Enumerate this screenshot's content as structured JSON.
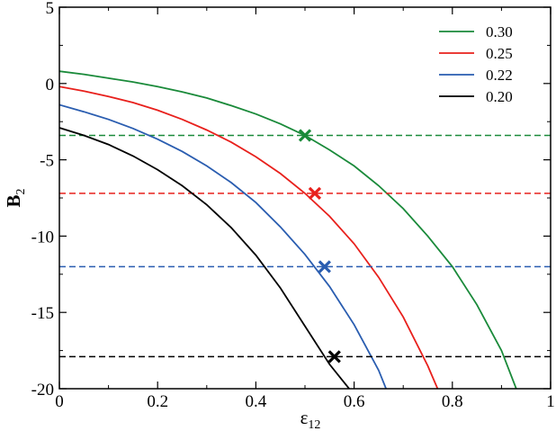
{
  "chart_data": {
    "type": "line",
    "title": "",
    "xlabel": "ε",
    "xlabel_sub": "12",
    "ylabel": "B",
    "ylabel_sub": "2",
    "xlim": [
      0,
      1
    ],
    "ylim": [
      -20,
      5
    ],
    "xticks": [
      0,
      0.2,
      0.4,
      0.6,
      0.8,
      1
    ],
    "xtick_labels": [
      "0",
      "0.2",
      "0.4",
      "0.6",
      "0.8",
      "1"
    ],
    "yticks": [
      5,
      0,
      -5,
      -10,
      -15,
      -20
    ],
    "ytick_labels": [
      "5",
      "0",
      "-5",
      "-10",
      "-15",
      "-20"
    ],
    "grid": false,
    "legend_position": "top-right",
    "series": [
      {
        "name": "0.30",
        "color": "#1a8a3a",
        "x": [
          0,
          0.05,
          0.1,
          0.15,
          0.2,
          0.25,
          0.3,
          0.35,
          0.4,
          0.45,
          0.5,
          0.55,
          0.6,
          0.65,
          0.7,
          0.75,
          0.8,
          0.85,
          0.9,
          0.93
        ],
        "y": [
          0.8,
          0.6,
          0.35,
          0.1,
          -0.2,
          -0.55,
          -0.95,
          -1.45,
          -2.0,
          -2.65,
          -3.4,
          -4.35,
          -5.4,
          -6.7,
          -8.2,
          -10.0,
          -12.0,
          -14.5,
          -17.5,
          -20.0
        ],
        "marker": {
          "x": 0.5,
          "y": -3.4
        },
        "hline_y": -3.4
      },
      {
        "name": "0.25",
        "color": "#e8201c",
        "x": [
          0,
          0.05,
          0.1,
          0.15,
          0.2,
          0.25,
          0.3,
          0.35,
          0.4,
          0.45,
          0.5,
          0.55,
          0.6,
          0.65,
          0.7,
          0.75,
          0.77
        ],
        "y": [
          -0.2,
          -0.5,
          -0.85,
          -1.25,
          -1.75,
          -2.35,
          -3.05,
          -3.85,
          -4.8,
          -5.9,
          -7.2,
          -8.7,
          -10.5,
          -12.7,
          -15.3,
          -18.5,
          -20.0
        ],
        "marker": {
          "x": 0.52,
          "y": -7.2
        },
        "hline_y": -7.2
      },
      {
        "name": "0.22",
        "color": "#2a5db0",
        "x": [
          0,
          0.05,
          0.1,
          0.15,
          0.2,
          0.25,
          0.3,
          0.35,
          0.4,
          0.45,
          0.5,
          0.55,
          0.6,
          0.65,
          0.665
        ],
        "y": [
          -1.4,
          -1.85,
          -2.35,
          -2.95,
          -3.65,
          -4.45,
          -5.4,
          -6.5,
          -7.8,
          -9.4,
          -11.2,
          -13.3,
          -15.8,
          -18.8,
          -20.0
        ],
        "marker": {
          "x": 0.54,
          "y": -12.0
        },
        "hline_y": -12.0
      },
      {
        "name": "0.20",
        "color": "#000000",
        "x": [
          0,
          0.05,
          0.1,
          0.15,
          0.2,
          0.25,
          0.3,
          0.35,
          0.4,
          0.45,
          0.5,
          0.55,
          0.59
        ],
        "y": [
          -2.9,
          -3.4,
          -4.0,
          -4.75,
          -5.65,
          -6.7,
          -7.95,
          -9.45,
          -11.25,
          -13.4,
          -15.9,
          -18.4,
          -20.0
        ],
        "marker": {
          "x": 0.56,
          "y": -17.9
        },
        "hline_y": -17.9
      }
    ]
  }
}
